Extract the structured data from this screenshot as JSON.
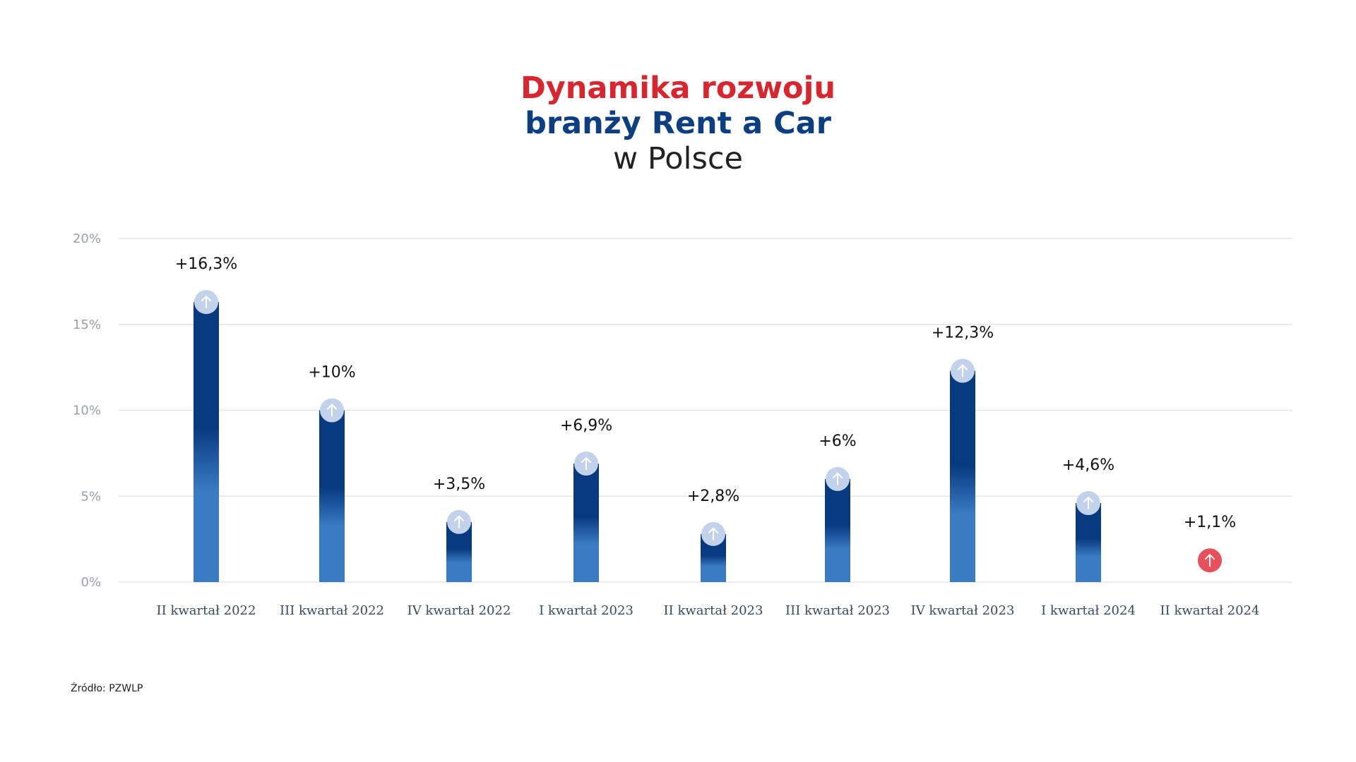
{
  "title": {
    "line1": "Dynamika rozwoju",
    "line2": "branży Rent a Car",
    "line3": "w Polsce"
  },
  "source": "Źródło: PZWLP",
  "colors": {
    "title_red": "#d9262e",
    "title_blue": "#0b3f82",
    "bar_dark": "#083a80",
    "bar_light": "#3a7cc4",
    "marker_light": "#c2d2ea",
    "marker_highlight": "#e8505b",
    "grid": "#e6e6e6",
    "axis_text": "#9aa0a8"
  },
  "chart_data": {
    "type": "bar",
    "categories": [
      "II kwartał 2022",
      "III kwartał 2022",
      "IV kwartał 2022",
      "I kwartał 2023",
      "II kwartał 2023",
      "III kwartał 2023",
      "IV kwartał 2023",
      "I kwartał 2024",
      "II kwartał 2024"
    ],
    "values": [
      16.3,
      10,
      3.5,
      6.9,
      2.8,
      6,
      12.3,
      4.6,
      1.1
    ],
    "data_labels": [
      "+16,3%",
      "+10%",
      "+3,5%",
      "+6,9%",
      "+2,8%",
      "+6%",
      "+12,3%",
      "+4,6%",
      "+1,1%"
    ],
    "yticks": [
      "0%",
      "5%",
      "10%",
      "15%",
      "20%"
    ],
    "ylim": [
      0,
      20
    ],
    "grid": true,
    "highlight_last": true
  }
}
